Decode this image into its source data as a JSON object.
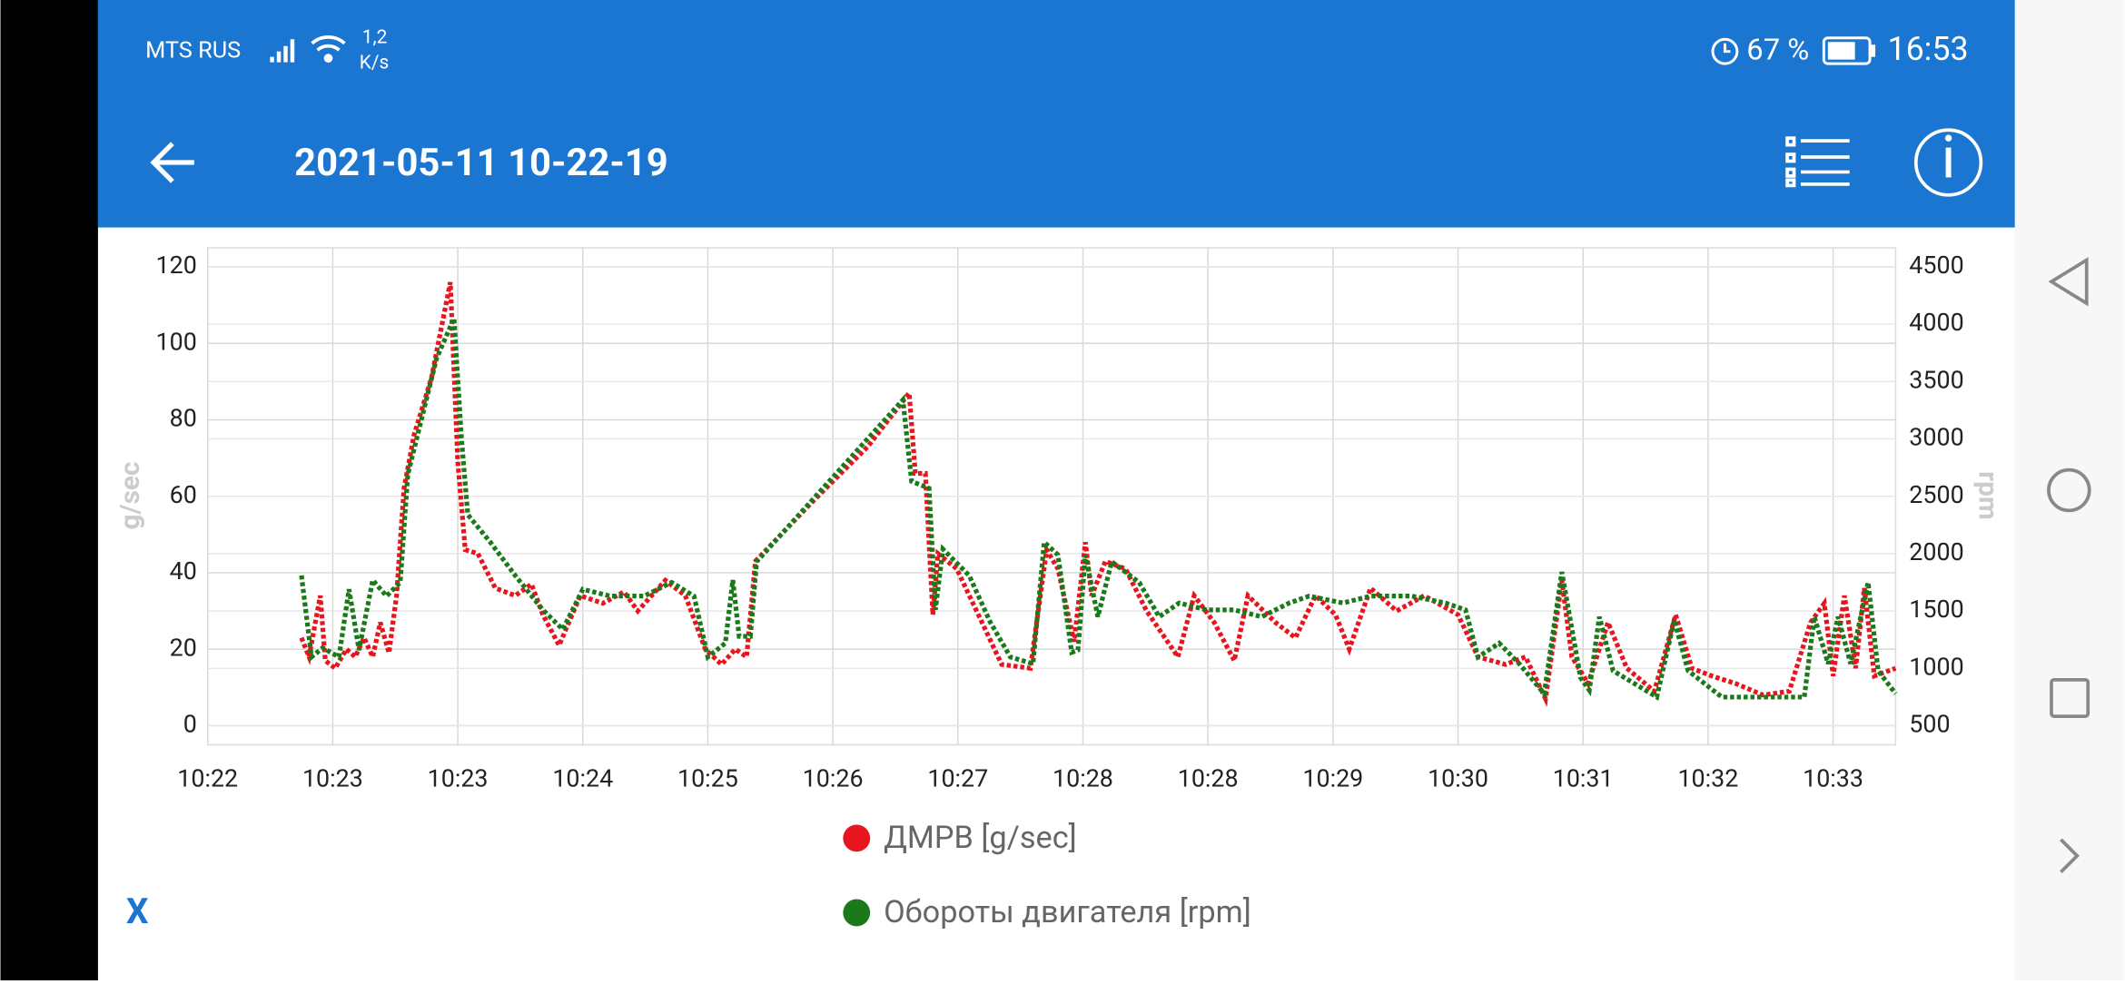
{
  "status_bar": {
    "carrier": "MTS RUS",
    "speed": "1,2",
    "speed_unit": "K/s",
    "battery": "67 %",
    "time": "16:53"
  },
  "app_bar": {
    "title": "2021-05-11 10-22-19"
  },
  "close_button": "X",
  "chart_data": {
    "type": "line",
    "y_label": "g/sec",
    "y2_label": "rpm",
    "grid": true,
    "legend": "bottom",
    "xlim": [
      0,
      13.5
    ],
    "xticks": [
      {
        "value": 0,
        "label": "10:22"
      },
      {
        "value": 1,
        "label": "10:23"
      },
      {
        "value": 2,
        "label": "10:23"
      },
      {
        "value": 3,
        "label": "10:24"
      },
      {
        "value": 4,
        "label": "10:25"
      },
      {
        "value": 5,
        "label": "10:26"
      },
      {
        "value": 6,
        "label": "10:27"
      },
      {
        "value": 7,
        "label": "10:28"
      },
      {
        "value": 8,
        "label": "10:28"
      },
      {
        "value": 9,
        "label": "10:29"
      },
      {
        "value": 10,
        "label": "10:30"
      },
      {
        "value": 11,
        "label": "10:31"
      },
      {
        "value": 12,
        "label": "10:32"
      },
      {
        "value": 13,
        "label": "10:33"
      }
    ],
    "ylim": [
      -5,
      125
    ],
    "yticks": [
      0,
      20,
      40,
      60,
      80,
      100,
      120
    ],
    "y2lim": [
      335,
      4665
    ],
    "y2ticks": [
      500,
      1000,
      1500,
      2000,
      2500,
      3000,
      3500,
      4000,
      4500
    ],
    "series": [
      {
        "name": "ДМРВ [g/sec]",
        "color": "#e8141e",
        "x": [
          0.75,
          0.81,
          0.9,
          0.94,
          1.02,
          1.11,
          1.18,
          1.25,
          1.32,
          1.38,
          1.45,
          1.51,
          1.57,
          1.65,
          1.79,
          1.94,
          2.0,
          2.06,
          2.16,
          2.3,
          2.46,
          2.59,
          2.68,
          2.81,
          2.98,
          3.16,
          3.33,
          3.44,
          3.66,
          3.82,
          3.98,
          4.11,
          4.22,
          4.31,
          4.38,
          4.85,
          5.28,
          5.61,
          5.66,
          5.74,
          5.8,
          5.84,
          5.99,
          6.15,
          6.35,
          6.58,
          6.71,
          6.8,
          6.93,
          7.02,
          7.07,
          7.18,
          7.34,
          7.51,
          7.76,
          7.89,
          8.05,
          8.21,
          8.32,
          8.54,
          8.7,
          8.86,
          9.02,
          9.13,
          9.3,
          9.51,
          9.73,
          10.0,
          10.16,
          10.38,
          10.54,
          10.7,
          10.83,
          10.91,
          11.04,
          11.2,
          11.35,
          11.57,
          11.74,
          11.87,
          12.03,
          12.22,
          12.44,
          12.65,
          12.82,
          12.93,
          13.0,
          13.09,
          13.18,
          13.25,
          13.33,
          13.5
        ],
        "values": [
          23,
          18,
          34,
          17,
          15,
          20,
          18,
          23,
          18,
          27,
          19,
          34,
          62,
          76,
          91,
          116,
          69,
          46,
          45,
          36,
          34,
          37,
          29,
          21,
          34,
          32,
          35,
          30,
          38,
          34,
          20,
          16,
          20,
          18,
          43,
          59,
          73,
          87,
          66,
          66,
          29,
          45,
          41,
          30,
          16,
          15,
          46,
          41,
          22,
          48,
          34,
          43,
          41,
          30,
          18,
          34,
          27,
          17,
          34,
          27,
          23,
          34,
          29,
          20,
          36,
          30,
          34,
          29,
          18,
          16,
          18,
          7,
          38,
          18,
          11,
          27,
          15,
          9,
          29,
          15,
          13,
          11,
          8,
          9,
          27,
          32,
          13,
          34,
          15,
          36,
          13,
          15
        ]
      },
      {
        "name": "Обороты двигателя [rpm]",
        "color": "#1a7a1a",
        "axis": "y2",
        "x": [
          0.75,
          0.83,
          0.92,
          1.05,
          1.13,
          1.21,
          1.32,
          1.43,
          1.54,
          1.6,
          1.83,
          1.97,
          2.03,
          2.08,
          2.26,
          2.46,
          2.68,
          2.84,
          3.0,
          3.22,
          3.49,
          3.71,
          3.89,
          4.0,
          4.14,
          4.2,
          4.25,
          4.34,
          4.39,
          5.07,
          5.56,
          5.63,
          5.77,
          5.82,
          5.88,
          6.09,
          6.26,
          6.42,
          6.6,
          6.69,
          6.8,
          6.91,
          6.96,
          7.02,
          7.12,
          7.23,
          7.45,
          7.61,
          7.77,
          7.99,
          8.21,
          8.43,
          8.65,
          8.81,
          9.08,
          9.3,
          9.63,
          9.9,
          10.06,
          10.16,
          10.33,
          10.49,
          10.69,
          10.83,
          10.98,
          11.05,
          11.13,
          11.24,
          11.59,
          11.73,
          11.84,
          12.11,
          12.77,
          12.85,
          12.96,
          13.04,
          13.14,
          13.28,
          13.36,
          13.5
        ],
        "values": [
          1810,
          1100,
          1180,
          1100,
          1690,
          1160,
          1770,
          1630,
          1750,
          2690,
          3700,
          4050,
          2990,
          2340,
          2100,
          1810,
          1510,
          1340,
          1690,
          1630,
          1630,
          1750,
          1630,
          1100,
          1220,
          1770,
          1280,
          1280,
          1930,
          2750,
          3340,
          2630,
          2570,
          1510,
          2040,
          1810,
          1400,
          1100,
          1040,
          2100,
          1990,
          1140,
          1160,
          1990,
          1450,
          1930,
          1750,
          1450,
          1570,
          1510,
          1510,
          1450,
          1570,
          1630,
          1570,
          1630,
          1630,
          1570,
          1510,
          1100,
          1220,
          1040,
          780,
          1840,
          920,
          810,
          1450,
          980,
          750,
          1420,
          980,
          750,
          750,
          1450,
          1040,
          1450,
          1040,
          1750,
          980,
          780
        ]
      }
    ]
  }
}
